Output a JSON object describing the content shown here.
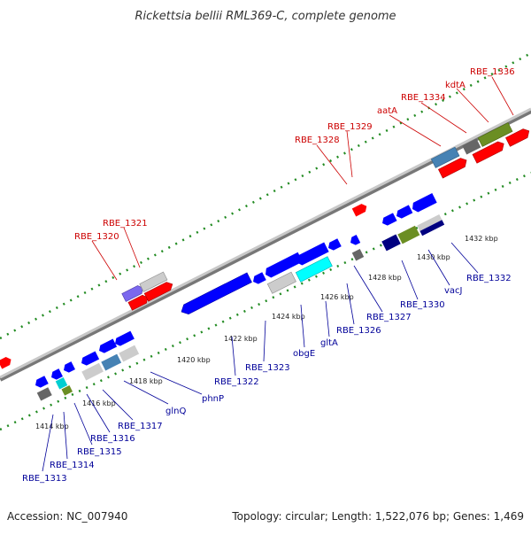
{
  "title": "Rickettsia bellii RML369-C, complete genome",
  "footer": {
    "accession": "Accession: NC_007940",
    "summary": "Topology: circular; Length: 1,522,076 bp; Genes: 1,469"
  },
  "colors": {
    "forward_label": "#cc0000",
    "reverse_label": "#000099",
    "backbone": "#999999",
    "tick": "#228b22"
  },
  "ruler_ticks": [
    "1414 kbp",
    "1416 kbp",
    "1418 kbp",
    "1420 kbp",
    "1422 kbp",
    "1424 kbp",
    "1426 kbp",
    "1428 kbp",
    "1430 kbp",
    "1432 kbp"
  ],
  "forward_labels": [
    "RBE_1320",
    "RBE_1321",
    "RBE_1328",
    "RBE_1329",
    "aatA",
    "RBE_1334",
    "kdtA",
    "RBE_1336"
  ],
  "reverse_labels": [
    "RBE_1313",
    "RBE_1314",
    "RBE_1315",
    "RBE_1316",
    "RBE_1317",
    "glnQ",
    "phnP",
    "RBE_1322",
    "RBE_1323",
    "obgE",
    "gltA",
    "RBE_1326",
    "RBE_1327",
    "RBE_1330",
    "vacJ",
    "RBE_1332"
  ]
}
